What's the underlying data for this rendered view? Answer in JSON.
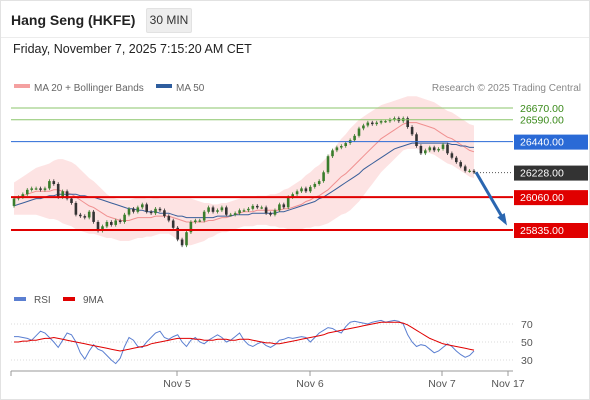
{
  "header": {
    "title": "Hang Seng (HKFE)",
    "timeframe": "30 MIN",
    "datetime": "Friday, November 7, 2025 7:15:20 AM CET"
  },
  "legend": {
    "items": [
      {
        "label": "MA 20 + Bollinger Bands",
        "color": "#f4a0a0"
      },
      {
        "label": "MA 50",
        "color": "#2e5d9e"
      }
    ],
    "credit": "Research © 2025 Trading Central"
  },
  "colors": {
    "up": "#3a7d2c",
    "down": "#333333",
    "support": "#e00000",
    "pivot": "#2a6ad6",
    "resistance": "#8bc56b",
    "band": "#fde0e0",
    "ma20": "#f09090",
    "ma50": "#3a5f9a",
    "rsi": "#5b7fd1",
    "rsi_ma": "#e00000",
    "arrow": "#2a66b0"
  },
  "chart_data": [
    {
      "type": "candlestick",
      "ylim": [
        25590,
        26860
      ],
      "x_labels": [
        "Nov 5",
        "Nov 6",
        "Nov 7",
        "Nov 17"
      ],
      "levels": [
        {
          "value": 26670,
          "label": "26670.00",
          "kind": "resistance"
        },
        {
          "value": 26590,
          "label": "26590.00",
          "kind": "resistance"
        },
        {
          "value": 26440,
          "label": "26440.00",
          "kind": "pivot"
        },
        {
          "value": 26228,
          "label": "26228.00",
          "kind": "last"
        },
        {
          "value": 26060,
          "label": "26060.00",
          "kind": "support"
        },
        {
          "value": 25835,
          "label": "25835.00",
          "kind": "support"
        }
      ],
      "forecast": {
        "from": 26230,
        "to": 25835
      },
      "close": [
        26050,
        26060,
        26080,
        26110,
        26120,
        26120,
        26110,
        26120,
        26170,
        26150,
        26060,
        26100,
        26050,
        26020,
        25940,
        25930,
        25920,
        25960,
        25890,
        25830,
        25860,
        25890,
        25870,
        25900,
        25890,
        25940,
        25980,
        25960,
        25990,
        26010,
        25960,
        25950,
        25980,
        25970,
        25930,
        25900,
        25850,
        25770,
        25730,
        25820,
        25890,
        25900,
        25900,
        25960,
        25990,
        25960,
        25970,
        25990,
        25940,
        25940,
        25950,
        25970,
        25970,
        25980,
        26000,
        25990,
        25990,
        25950,
        25940,
        25970,
        26010,
        25990,
        26060,
        26080,
        26100,
        26120,
        26100,
        26130,
        26150,
        26170,
        26230,
        26340,
        26380,
        26400,
        26410,
        26430,
        26450,
        26480,
        26530,
        26550,
        26570,
        26560,
        26570,
        26580,
        26580,
        26590,
        26600,
        26580,
        26600,
        26540,
        26490,
        26410,
        26360,
        26380,
        26400,
        26380,
        26390,
        26420,
        26360,
        26330,
        26300,
        26270,
        26240,
        26240,
        26230
      ],
      "open": [
        26000,
        26050,
        26060,
        26080,
        26110,
        26120,
        26120,
        26110,
        26120,
        26170,
        26150,
        26060,
        26100,
        26050,
        26020,
        25940,
        25930,
        25920,
        25960,
        25890,
        25830,
        25860,
        25890,
        25870,
        25900,
        25890,
        25940,
        25980,
        25960,
        25990,
        26010,
        25960,
        25950,
        25980,
        25970,
        25930,
        25900,
        25850,
        25770,
        25730,
        25820,
        25890,
        25900,
        25900,
        25960,
        25990,
        25960,
        25970,
        25990,
        25940,
        25940,
        25950,
        25970,
        25970,
        25980,
        26000,
        25990,
        25990,
        25950,
        25940,
        25970,
        26010,
        25990,
        26060,
        26080,
        26100,
        26120,
        26100,
        26130,
        26150,
        26170,
        26230,
        26340,
        26380,
        26400,
        26410,
        26430,
        26450,
        26480,
        26530,
        26550,
        26570,
        26560,
        26570,
        26580,
        26580,
        26590,
        26600,
        26580,
        26600,
        26540,
        26490,
        26410,
        26360,
        26380,
        26400,
        26380,
        26390,
        26420,
        26360,
        26330,
        26300,
        26270,
        26240,
        26240
      ],
      "ma20": [
        26050,
        26060,
        26070,
        26080,
        26090,
        26100,
        26100,
        26100,
        26100,
        26110,
        26110,
        26100,
        26090,
        26080,
        26060,
        26040,
        26020,
        26000,
        25990,
        25970,
        25950,
        25930,
        25920,
        25910,
        25900,
        25900,
        25900,
        25910,
        25920,
        25920,
        25920,
        25920,
        25930,
        25930,
        25930,
        25930,
        25920,
        25910,
        25900,
        25890,
        25890,
        25890,
        25890,
        25890,
        25900,
        25900,
        25910,
        25920,
        25920,
        25930,
        25940,
        25950,
        25960,
        25960,
        25960,
        25970,
        25970,
        25970,
        25970,
        25970,
        25970,
        25980,
        25980,
        25990,
        26000,
        26010,
        26030,
        26040,
        26060,
        26070,
        26090,
        26110,
        26140,
        26170,
        26200,
        26220,
        26250,
        26280,
        26310,
        26340,
        26370,
        26400,
        26430,
        26460,
        26480,
        26500,
        26520,
        26540,
        26560,
        26570,
        26570,
        26570,
        26560,
        26550,
        26540,
        26530,
        26510,
        26490,
        26470,
        26460,
        26440,
        26420,
        26400,
        26380,
        26370
      ],
      "ma50": [
        26000,
        26010,
        26020,
        26030,
        26040,
        26050,
        26050,
        26060,
        26070,
        26070,
        26080,
        26080,
        26080,
        26080,
        26080,
        26070,
        26070,
        26060,
        26060,
        26050,
        26040,
        26030,
        26020,
        26010,
        26000,
        25990,
        25980,
        25980,
        25970,
        25970,
        25960,
        25960,
        25960,
        25950,
        25950,
        25950,
        25940,
        25930,
        25930,
        25920,
        25920,
        25920,
        25920,
        25920,
        25920,
        25920,
        25930,
        25930,
        25930,
        25930,
        25940,
        25940,
        25940,
        25940,
        25950,
        25950,
        25950,
        25950,
        25950,
        25950,
        25960,
        25960,
        25970,
        25980,
        25990,
        26000,
        26010,
        26020,
        26030,
        26050,
        26060,
        26080,
        26100,
        26120,
        26140,
        26160,
        26180,
        26200,
        26220,
        26250,
        26270,
        26290,
        26310,
        26330,
        26350,
        26370,
        26390,
        26400,
        26410,
        26420,
        26430,
        26430,
        26430,
        26430,
        26430,
        26430,
        26430,
        26430,
        26430,
        26420,
        26420,
        26410,
        26410,
        26400,
        26400
      ],
      "bb_width": [
        110,
        120,
        130,
        140,
        150,
        160,
        170,
        180,
        190,
        200,
        210,
        220,
        220,
        220,
        220,
        210,
        200,
        190,
        180,
        170,
        160,
        150,
        140,
        140,
        140,
        140,
        140,
        140,
        140,
        140,
        130,
        130,
        130,
        120,
        120,
        120,
        130,
        140,
        150,
        160,
        160,
        150,
        140,
        130,
        120,
        110,
        100,
        100,
        100,
        100,
        100,
        100,
        100,
        100,
        100,
        100,
        100,
        100,
        110,
        110,
        120,
        130,
        140,
        150,
        160,
        170,
        180,
        190,
        200,
        210,
        220,
        230,
        240,
        250,
        260,
        270,
        280,
        280,
        280,
        270,
        260,
        250,
        240,
        230,
        220,
        210,
        200,
        190,
        180,
        180,
        180,
        180,
        180,
        180,
        180,
        180,
        180,
        180,
        180,
        180,
        180,
        180,
        180,
        180,
        180
      ]
    },
    {
      "type": "line",
      "title": "",
      "ylim": [
        20,
        80
      ],
      "y_ticks": [
        30,
        50,
        70
      ],
      "legend": [
        "RSI",
        "9MA"
      ],
      "rsi": [
        56,
        56,
        55,
        54,
        52,
        57,
        62,
        60,
        55,
        50,
        44,
        52,
        60,
        58,
        50,
        38,
        31,
        40,
        47,
        42,
        40,
        35,
        30,
        26,
        32,
        45,
        55,
        52,
        45,
        44,
        50,
        55,
        60,
        62,
        55,
        53,
        56,
        58,
        50,
        45,
        52,
        55,
        50,
        48,
        52,
        55,
        58,
        55,
        50,
        52,
        56,
        60,
        52,
        47,
        45,
        48,
        50,
        46,
        44,
        47,
        52,
        53,
        55,
        54,
        55,
        56,
        55,
        50,
        55,
        60,
        63,
        66,
        65,
        62,
        60,
        67,
        72,
        73,
        72,
        71,
        70,
        72,
        73,
        74,
        72,
        73,
        74,
        73,
        70,
        58,
        50,
        45,
        47,
        46,
        42,
        38,
        40,
        44,
        48,
        45,
        40,
        36,
        33,
        35,
        40
      ],
      "rsi_ma": [
        50,
        50,
        51,
        51,
        52,
        52,
        53,
        54,
        54,
        55,
        54,
        53,
        52,
        51,
        50,
        49,
        48,
        47,
        46,
        45,
        44,
        43,
        42,
        41,
        40,
        41,
        42,
        43,
        44,
        45,
        46,
        48,
        49,
        50,
        51,
        52,
        53,
        54,
        54,
        54,
        54,
        53,
        53,
        52,
        52,
        52,
        53,
        53,
        53,
        52,
        52,
        53,
        53,
        53,
        52,
        51,
        50,
        49,
        49,
        48,
        48,
        49,
        50,
        51,
        52,
        53,
        54,
        55,
        56,
        57,
        58,
        60,
        61,
        62,
        63,
        64,
        65,
        66,
        67,
        68,
        69,
        70,
        71,
        72,
        72,
        72,
        72,
        72,
        71,
        69,
        66,
        63,
        60,
        57,
        54,
        52,
        50,
        48,
        47,
        46,
        45,
        44,
        43,
        42,
        41
      ]
    }
  ]
}
